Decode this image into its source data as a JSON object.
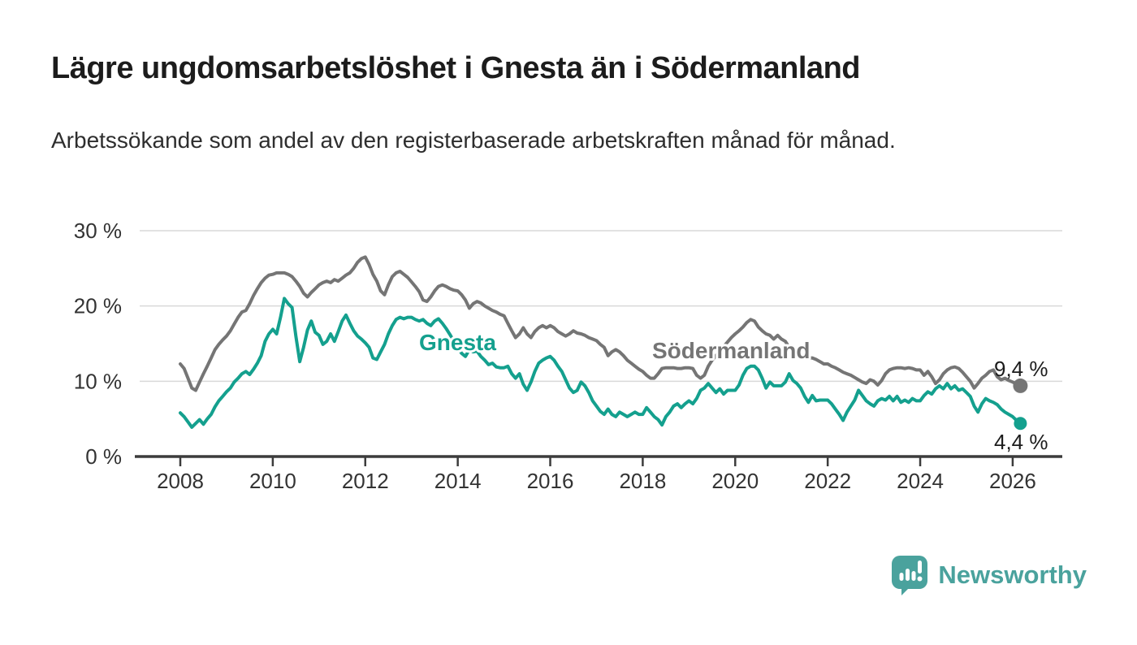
{
  "header": {
    "title": "Lägre ungdomsarbetslöshet i Gnesta än i Södermanland",
    "subtitle": "Arbetssökande som andel av den registerbaserade arbetskraften månad för månad."
  },
  "colors": {
    "grid": "#d9d9d9",
    "axis": "#3c3c3c",
    "axis_text": "#333333",
    "value_text": "#1c1c1c",
    "teal": "#14A08E",
    "gray": "#757575",
    "brand_teal": "#4AA29D"
  },
  "chart_data": {
    "type": "line",
    "title": "Lägre ungdomsarbetslöshet i Gnesta än i Södermanland",
    "subtitle": "Arbetssökande som andel av den registerbaserade arbetskraften månad för månad.",
    "grid": true,
    "legend_position": "inline-labels-on-lines",
    "x_start": 2008.0,
    "x_step": 0.083333,
    "x_ticks": [
      2008,
      2010,
      2012,
      2014,
      2016,
      2018,
      2020,
      2022,
      2024,
      2026
    ],
    "y_ticks": [
      0,
      10,
      20,
      30
    ],
    "y_tick_suffix": " %",
    "ylim": [
      0,
      32
    ],
    "xlim": [
      2007.1,
      2027.1
    ],
    "xlabel": "",
    "ylabel": "",
    "series": [
      {
        "name": "Gnesta",
        "color": "#14A08E",
        "end_value": 4.4,
        "end_label": "4,4 %",
        "values": [
          5.8,
          5.3,
          4.6,
          3.9,
          4.4,
          4.9,
          4.3,
          5.0,
          5.6,
          6.6,
          7.4,
          8.0,
          8.6,
          9.1,
          9.9,
          10.4,
          11.0,
          11.3,
          10.9,
          11.6,
          12.4,
          13.4,
          15.3,
          16.3,
          16.9,
          16.3,
          18.5,
          21.0,
          20.3,
          19.8,
          16.0,
          12.6,
          14.5,
          16.8,
          18.0,
          16.5,
          16.1,
          14.9,
          15.3,
          16.3,
          15.3,
          16.6,
          18.0,
          18.8,
          17.7,
          16.7,
          16.0,
          15.6,
          15.1,
          14.5,
          13.1,
          12.9,
          13.9,
          14.9,
          16.3,
          17.4,
          18.2,
          18.5,
          18.3,
          18.5,
          18.5,
          18.2,
          18.0,
          18.2,
          17.7,
          17.4,
          18.0,
          18.3,
          17.7,
          17.0,
          16.2,
          15.3,
          14.5,
          13.7,
          13.3,
          14.2,
          13.9,
          14.0,
          13.3,
          12.8,
          12.2,
          12.4,
          11.9,
          11.8,
          11.8,
          12.0,
          11.0,
          10.4,
          11.0,
          9.6,
          8.8,
          9.9,
          11.3,
          12.4,
          12.8,
          13.1,
          13.3,
          12.8,
          12.0,
          11.3,
          10.2,
          9.1,
          8.5,
          8.8,
          9.9,
          9.4,
          8.5,
          7.4,
          6.7,
          6.0,
          5.6,
          6.3,
          5.6,
          5.3,
          5.9,
          5.6,
          5.3,
          5.6,
          5.9,
          5.6,
          5.6,
          6.5,
          5.9,
          5.3,
          4.9,
          4.2,
          5.3,
          5.9,
          6.7,
          7.0,
          6.5,
          7.0,
          7.4,
          7.0,
          7.7,
          8.8,
          9.1,
          9.7,
          9.1,
          8.5,
          9.0,
          8.3,
          8.8,
          8.8,
          8.8,
          9.5,
          10.8,
          11.7,
          12.0,
          12.0,
          11.5,
          10.4,
          9.1,
          9.9,
          9.4,
          9.4,
          9.4,
          9.9,
          11.0,
          10.1,
          9.7,
          9.1,
          8.0,
          7.2,
          8.1,
          7.4,
          7.5,
          7.5,
          7.5,
          7.0,
          6.3,
          5.6,
          4.8,
          5.9,
          6.7,
          7.5,
          8.8,
          8.1,
          7.4,
          7.0,
          6.7,
          7.4,
          7.7,
          7.5,
          8.0,
          7.4,
          8.0,
          7.2,
          7.5,
          7.2,
          7.7,
          7.4,
          7.4,
          8.1,
          8.6,
          8.3,
          9.0,
          9.4,
          9.0,
          9.7,
          9.0,
          9.4,
          8.8,
          9.0,
          8.5,
          8.0,
          6.7,
          5.9,
          7.0,
          7.7,
          7.4,
          7.2,
          6.9,
          6.3,
          5.9,
          5.6,
          5.3,
          4.8,
          4.4
        ]
      },
      {
        "name": "Södermanland",
        "color": "#757575",
        "end_value": 9.4,
        "end_label": "9,4 %",
        "values": [
          12.3,
          11.7,
          10.4,
          9.1,
          8.8,
          9.9,
          11.0,
          12.0,
          13.1,
          14.2,
          14.9,
          15.5,
          16.0,
          16.7,
          17.6,
          18.5,
          19.2,
          19.4,
          20.3,
          21.4,
          22.3,
          23.1,
          23.7,
          24.1,
          24.2,
          24.4,
          24.4,
          24.4,
          24.2,
          23.9,
          23.3,
          22.6,
          21.7,
          21.2,
          21.8,
          22.3,
          22.8,
          23.1,
          23.3,
          23.1,
          23.5,
          23.3,
          23.7,
          24.1,
          24.4,
          25.0,
          25.8,
          26.3,
          26.5,
          25.5,
          24.2,
          23.3,
          22.0,
          21.5,
          22.8,
          23.9,
          24.4,
          24.6,
          24.2,
          23.8,
          23.2,
          22.6,
          21.9,
          20.8,
          20.6,
          21.2,
          22.0,
          22.6,
          22.8,
          22.6,
          22.3,
          22.1,
          22.0,
          21.5,
          20.8,
          19.7,
          20.3,
          20.6,
          20.4,
          20.0,
          19.7,
          19.4,
          19.2,
          18.9,
          18.7,
          17.7,
          16.7,
          15.8,
          16.3,
          17.1,
          16.3,
          15.8,
          16.6,
          17.1,
          17.4,
          17.1,
          17.4,
          17.1,
          16.6,
          16.3,
          16.0,
          16.3,
          16.7,
          16.4,
          16.3,
          16.1,
          15.8,
          15.6,
          15.4,
          14.9,
          14.5,
          13.4,
          13.9,
          14.2,
          13.9,
          13.4,
          12.8,
          12.4,
          12.0,
          11.6,
          11.3,
          10.8,
          10.4,
          10.4,
          11.0,
          11.7,
          11.8,
          11.8,
          11.8,
          11.7,
          11.7,
          11.8,
          11.8,
          11.7,
          10.8,
          10.4,
          10.8,
          12.0,
          12.8,
          13.4,
          14.0,
          14.6,
          15.2,
          15.8,
          16.3,
          16.7,
          17.2,
          17.8,
          18.2,
          18.0,
          17.2,
          16.7,
          16.3,
          16.1,
          15.6,
          16.1,
          15.6,
          15.3,
          14.5,
          14.0,
          13.7,
          13.3,
          13.1,
          13.1,
          13.1,
          12.9,
          12.6,
          12.3,
          12.3,
          12.0,
          11.8,
          11.5,
          11.2,
          11.0,
          10.8,
          10.5,
          10.2,
          9.9,
          9.7,
          10.2,
          10.0,
          9.5,
          10.1,
          11.0,
          11.5,
          11.7,
          11.8,
          11.8,
          11.7,
          11.8,
          11.7,
          11.5,
          11.5,
          10.8,
          11.3,
          10.6,
          9.7,
          10.2,
          11.0,
          11.5,
          11.8,
          11.9,
          11.7,
          11.2,
          10.6,
          10.0,
          9.1,
          9.7,
          10.4,
          10.8,
          11.3,
          11.5,
          10.6,
          10.2,
          10.4,
          10.1,
          9.9,
          9.6,
          9.4
        ]
      }
    ]
  },
  "footer": {
    "brand": "Newsworthy"
  }
}
